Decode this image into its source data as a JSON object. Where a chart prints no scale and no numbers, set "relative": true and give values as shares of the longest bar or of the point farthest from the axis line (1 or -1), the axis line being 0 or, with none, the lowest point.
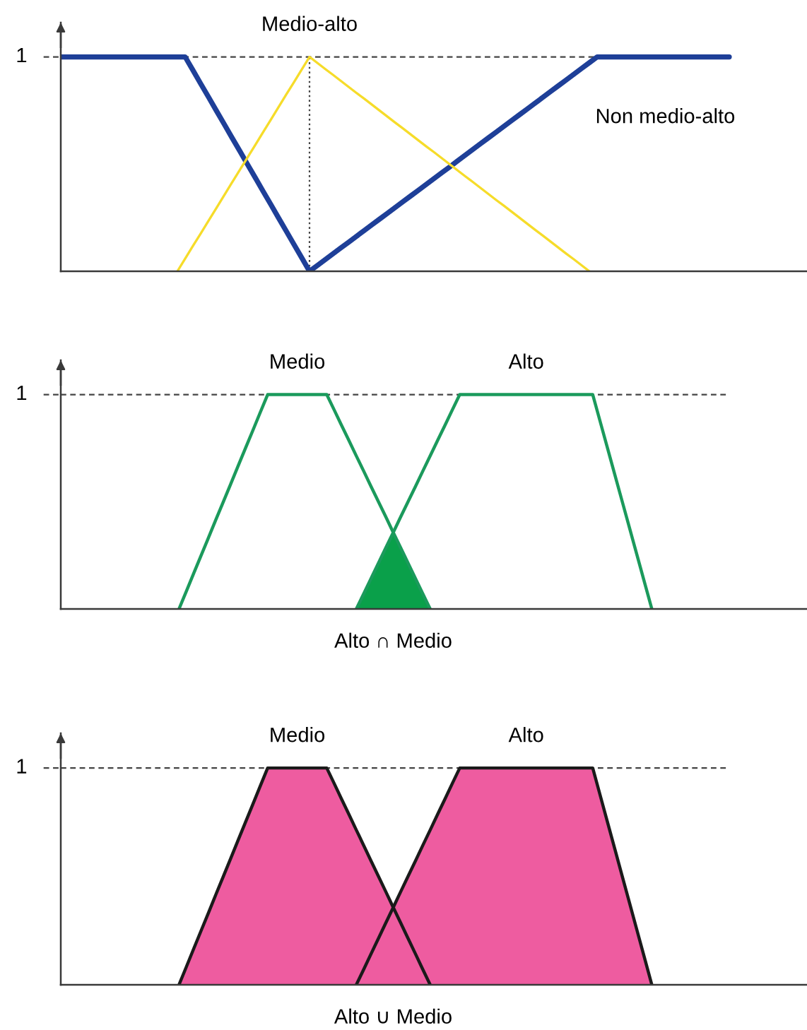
{
  "chart_data": [
    {
      "type": "line",
      "relative": true,
      "categories": [
        null,
        null,
        null,
        null,
        null,
        null,
        null,
        null,
        null,
        null,
        null,
        null,
        null,
        null,
        null,
        null,
        null,
        null,
        null,
        null,
        null,
        null,
        null,
        null,
        null,
        null,
        null,
        null,
        null,
        null,
        null,
        null,
        null,
        null,
        null,
        null,
        null,
        null,
        null,
        null,
        null,
        null,
        null,
        null,
        null,
        null,
        null,
        null,
        null,
        null,
        null,
        null,
        null,
        null,
        null,
        null,
        null,
        null,
        null,
        null,
        null,
        null,
        null,
        null,
        null,
        null,
        null,
        null,
        null,
        null,
        null,
        null,
        null,
        null,
        null,
        null,
        null,
        null,
        null,
        null,
        null,
        null,
        null,
        null,
        null,
        null,
        null,
        null,
        null,
        null,
        null,
        null,
        null,
        null,
        null,
        null,
        null
      ],
      "series": [
        {
          "name": "Non medio-alto",
          "color": "#1e3f98",
          "values": [
            1,
            1,
            1,
            1,
            1,
            1,
            1,
            1,
            1,
            1,
            1,
            1,
            1,
            1,
            1,
            1,
            1,
            0.938,
            0.875,
            0.813,
            0.75,
            0.688,
            0.625,
            0.563,
            0.5,
            0.438,
            0.375,
            0.313,
            0.25,
            0.188,
            0.125,
            0.063,
            0,
            0.027,
            0.054,
            0.081,
            0.108,
            0.135,
            0.162,
            0.189,
            0.216,
            0.243,
            0.27,
            0.297,
            0.324,
            0.351,
            0.378,
            0.405,
            0.432,
            0.459,
            0.486,
            0.514,
            0.541,
            0.568,
            0.595,
            0.622,
            0.649,
            0.676,
            0.703,
            0.73,
            0.757,
            0.784,
            0.811,
            0.838,
            0.865,
            0.892,
            0.919,
            0.946,
            0.973,
            1,
            1,
            1,
            1,
            1,
            1,
            1,
            1,
            1,
            1,
            1,
            1,
            1,
            1,
            1,
            1,
            1,
            1,
            null,
            null,
            null,
            null,
            null,
            null,
            null,
            null,
            null,
            null
          ]
        },
        {
          "name": "Medio-alto",
          "color": "#f6dc2a",
          "values": [
            null,
            null,
            null,
            null,
            null,
            null,
            null,
            null,
            null,
            null,
            null,
            null,
            null,
            null,
            null,
            0,
            0.059,
            0.118,
            0.176,
            0.235,
            0.294,
            0.353,
            0.412,
            0.471,
            0.529,
            0.588,
            0.647,
            0.706,
            0.765,
            0.824,
            0.882,
            0.941,
            1,
            0.972,
            0.944,
            0.917,
            0.889,
            0.861,
            0.833,
            0.806,
            0.778,
            0.75,
            0.722,
            0.694,
            0.667,
            0.639,
            0.611,
            0.583,
            0.556,
            0.528,
            0.5,
            0.472,
            0.444,
            0.417,
            0.389,
            0.361,
            0.333,
            0.306,
            0.278,
            0.25,
            0.222,
            0.194,
            0.167,
            0.139,
            0.111,
            0.083,
            0.056,
            0.028,
            0,
            null,
            null,
            null,
            null,
            null,
            null,
            null,
            null,
            null,
            null,
            null,
            null,
            null,
            null,
            null,
            null,
            null,
            null,
            null,
            null,
            null,
            null,
            null,
            null,
            null,
            null,
            null,
            null
          ]
        }
      ],
      "ref_lines": [
        {
          "axis": "y",
          "value": 1,
          "label": "1",
          "line_style": "dashed",
          "color": "#444444"
        }
      ]
    },
    {
      "type": "line",
      "relative": true,
      "categories": [
        null,
        null,
        null,
        null,
        null,
        null,
        null,
        null,
        null,
        null,
        null,
        null,
        null,
        null,
        null,
        null,
        null,
        null,
        null,
        null,
        null,
        null,
        null,
        null,
        null,
        null,
        null,
        null,
        null,
        null,
        null,
        null,
        null,
        null,
        null,
        null,
        null,
        null,
        null,
        null,
        null,
        null,
        null,
        null,
        null,
        null,
        null,
        null,
        null,
        null,
        null,
        null,
        null,
        null,
        null,
        null,
        null,
        null,
        null,
        null,
        null,
        null,
        null,
        null,
        null,
        null,
        null,
        null,
        null,
        null,
        null,
        null,
        null,
        null,
        null,
        null,
        null,
        null,
        null,
        null,
        null,
        null,
        null,
        null,
        null,
        null,
        null,
        null,
        null,
        null,
        null,
        null,
        null,
        null,
        null,
        null,
        null,
        null,
        null,
        null,
        null,
        null
      ],
      "series": [
        {
          "name": "Medio",
          "color": "#1b9a5c",
          "values": [
            null,
            null,
            null,
            null,
            null,
            null,
            null,
            null,
            null,
            null,
            null,
            null,
            null,
            null,
            null,
            null,
            0,
            0.083,
            0.167,
            0.25,
            0.333,
            0.417,
            0.5,
            0.583,
            0.667,
            0.75,
            0.833,
            0.917,
            1,
            1,
            1,
            1,
            1,
            1,
            1,
            1,
            1,
            0.929,
            0.857,
            0.786,
            0.714,
            0.643,
            0.571,
            0.5,
            0.429,
            0.357,
            0.286,
            0.214,
            0.143,
            0.071,
            0,
            null,
            null,
            null,
            null,
            null,
            null,
            null,
            null,
            null,
            null,
            null,
            null,
            null,
            null,
            null,
            null,
            null,
            null,
            null,
            null,
            null,
            null,
            null,
            null,
            null,
            null,
            null,
            null,
            null,
            null,
            null,
            null,
            null,
            null,
            null,
            null,
            null,
            null,
            null,
            null,
            null,
            null,
            null,
            null,
            null,
            null,
            null,
            null,
            null,
            null,
            null
          ]
        },
        {
          "name": "Alto",
          "color": "#1b9a5c",
          "values": [
            null,
            null,
            null,
            null,
            null,
            null,
            null,
            null,
            null,
            null,
            null,
            null,
            null,
            null,
            null,
            null,
            null,
            null,
            null,
            null,
            null,
            null,
            null,
            null,
            null,
            null,
            null,
            null,
            null,
            null,
            null,
            null,
            null,
            null,
            null,
            null,
            null,
            null,
            null,
            null,
            0,
            0.071,
            0.143,
            0.214,
            0.286,
            0.357,
            0.429,
            0.5,
            0.571,
            0.643,
            0.714,
            0.786,
            0.857,
            0.929,
            1,
            1,
            1,
            1,
            1,
            1,
            1,
            1,
            1,
            1,
            1,
            1,
            1,
            1,
            1,
            1,
            1,
            1,
            1,
            0.875,
            0.75,
            0.625,
            0.5,
            0.375,
            0.25,
            0.125,
            0,
            null,
            null,
            null,
            null,
            null,
            null,
            null,
            null,
            null,
            null,
            null,
            null,
            null,
            null,
            null,
            null,
            null,
            null,
            null,
            null,
            null
          ]
        },
        {
          "name": "Alto ∩ Medio",
          "type": "area",
          "color": "#0aa04a",
          "values": [
            null,
            null,
            null,
            null,
            null,
            null,
            null,
            null,
            null,
            null,
            null,
            null,
            null,
            null,
            null,
            null,
            null,
            null,
            null,
            null,
            null,
            null,
            null,
            null,
            null,
            null,
            null,
            null,
            null,
            null,
            null,
            null,
            null,
            null,
            null,
            null,
            null,
            null,
            null,
            null,
            0,
            0.071,
            0.143,
            0.214,
            0.286,
            0.357,
            0.286,
            0.214,
            0.143,
            0.071,
            0,
            null,
            null,
            null,
            null,
            null,
            null,
            null,
            null,
            null,
            null,
            null,
            null,
            null,
            null,
            null,
            null,
            null,
            null,
            null,
            null,
            null,
            null,
            null,
            null,
            null,
            null,
            null,
            null,
            null,
            null,
            null,
            null,
            null,
            null,
            null,
            null,
            null,
            null,
            null,
            null,
            null,
            null,
            null,
            null,
            null,
            null,
            null,
            null,
            null,
            null,
            null
          ]
        }
      ],
      "ref_lines": [
        {
          "axis": "y",
          "value": 1,
          "label": "1",
          "line_style": "dashed",
          "color": "#444444"
        }
      ]
    },
    {
      "type": "line",
      "relative": true,
      "categories": [
        null,
        null,
        null,
        null,
        null,
        null,
        null,
        null,
        null,
        null,
        null,
        null,
        null,
        null,
        null,
        null,
        null,
        null,
        null,
        null,
        null,
        null,
        null,
        null,
        null,
        null,
        null,
        null,
        null,
        null,
        null,
        null,
        null,
        null,
        null,
        null,
        null,
        null,
        null,
        null,
        null,
        null,
        null,
        null,
        null,
        null,
        null,
        null,
        null,
        null,
        null,
        null,
        null,
        null,
        null,
        null,
        null,
        null,
        null,
        null,
        null,
        null,
        null,
        null,
        null,
        null,
        null,
        null,
        null,
        null,
        null,
        null,
        null,
        null,
        null,
        null,
        null,
        null,
        null,
        null,
        null,
        null,
        null,
        null,
        null,
        null,
        null,
        null,
        null,
        null,
        null,
        null,
        null,
        null,
        null,
        null,
        null,
        null,
        null,
        null,
        null,
        null
      ],
      "series": [
        {
          "name": "Medio",
          "color": "#1a1a1a",
          "values": [
            null,
            null,
            null,
            null,
            null,
            null,
            null,
            null,
            null,
            null,
            null,
            null,
            null,
            null,
            null,
            null,
            0,
            0.083,
            0.167,
            0.25,
            0.333,
            0.417,
            0.5,
            0.583,
            0.667,
            0.75,
            0.833,
            0.917,
            1,
            1,
            1,
            1,
            1,
            1,
            1,
            1,
            1,
            0.929,
            0.857,
            0.786,
            0.714,
            0.643,
            0.571,
            0.5,
            0.429,
            0.357,
            0.286,
            0.214,
            0.143,
            0.071,
            0,
            null,
            null,
            null,
            null,
            null,
            null,
            null,
            null,
            null,
            null,
            null,
            null,
            null,
            null,
            null,
            null,
            null,
            null,
            null,
            null,
            null,
            null,
            null,
            null,
            null,
            null,
            null,
            null,
            null,
            null,
            null,
            null,
            null,
            null,
            null,
            null,
            null,
            null,
            null,
            null,
            null,
            null,
            null,
            null,
            null,
            null,
            null,
            null,
            null,
            null,
            null
          ]
        },
        {
          "name": "Alto",
          "color": "#1a1a1a",
          "values": [
            null,
            null,
            null,
            null,
            null,
            null,
            null,
            null,
            null,
            null,
            null,
            null,
            null,
            null,
            null,
            null,
            null,
            null,
            null,
            null,
            null,
            null,
            null,
            null,
            null,
            null,
            null,
            null,
            null,
            null,
            null,
            null,
            null,
            null,
            null,
            null,
            null,
            null,
            null,
            null,
            0,
            0.071,
            0.143,
            0.214,
            0.286,
            0.357,
            0.429,
            0.5,
            0.571,
            0.643,
            0.714,
            0.786,
            0.857,
            0.929,
            1,
            1,
            1,
            1,
            1,
            1,
            1,
            1,
            1,
            1,
            1,
            1,
            1,
            1,
            1,
            1,
            1,
            1,
            1,
            0.875,
            0.75,
            0.625,
            0.5,
            0.375,
            0.25,
            0.125,
            0,
            null,
            null,
            null,
            null,
            null,
            null,
            null,
            null,
            null,
            null,
            null,
            null,
            null,
            null,
            null,
            null,
            null,
            null,
            null,
            null,
            null
          ]
        },
        {
          "name": "Alto ∪ Medio",
          "type": "area",
          "color": "#ee5ca0",
          "values": [
            null,
            null,
            null,
            null,
            null,
            null,
            null,
            null,
            null,
            null,
            null,
            null,
            null,
            null,
            null,
            null,
            0,
            0.083,
            0.167,
            0.25,
            0.333,
            0.417,
            0.5,
            0.583,
            0.667,
            0.75,
            0.833,
            0.917,
            1,
            1,
            1,
            1,
            1,
            1,
            1,
            1,
            1,
            0.929,
            0.857,
            0.786,
            0.714,
            0.643,
            0.571,
            0.5,
            0.429,
            0.357,
            0.429,
            0.5,
            0.571,
            0.643,
            0.714,
            0.786,
            0.857,
            0.929,
            1,
            1,
            1,
            1,
            1,
            1,
            1,
            1,
            1,
            1,
            1,
            1,
            1,
            1,
            1,
            1,
            1,
            1,
            1,
            0.875,
            0.75,
            0.625,
            0.5,
            0.375,
            0.25,
            0.125,
            0,
            null,
            null,
            null,
            null,
            null,
            null,
            null,
            null,
            null,
            null,
            null,
            null,
            null,
            null,
            null,
            null,
            null,
            null,
            null,
            null,
            null
          ]
        }
      ],
      "ref_lines": [
        {
          "axis": "y",
          "value": 1,
          "label": "1",
          "line_style": "dashed",
          "color": "#444444"
        }
      ]
    }
  ]
}
